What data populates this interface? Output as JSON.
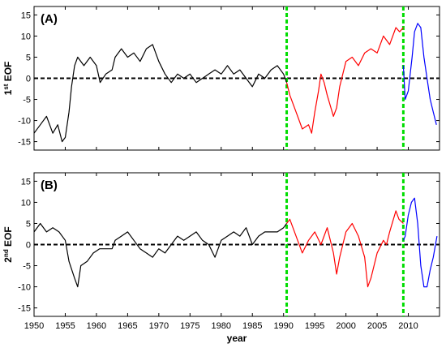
{
  "colors": {
    "pre": "#000000",
    "mid": "#ff0000",
    "post": "#0000ff",
    "split": "#00dd00",
    "zero": "#000000"
  },
  "chart_data": [
    {
      "type": "line",
      "panel_label": "(A)",
      "ylabel": {
        "prefix": "1",
        "sup": "st",
        "suffix": " EOF"
      },
      "xlabel": "",
      "xlim": [
        1950,
        2015
      ],
      "ylim": [
        -17,
        17
      ],
      "xticks": [],
      "yticks": [
        -15,
        -10,
        -5,
        0,
        5,
        10,
        15
      ],
      "grid": false,
      "split_years": [
        1990.5,
        2009.2
      ],
      "zero_line": 0,
      "series": [
        {
          "values": [
            [
              1950.0,
              -13
            ],
            [
              1951.0,
              -11
            ],
            [
              1952.0,
              -9
            ],
            [
              1953.0,
              -13
            ],
            [
              1953.8,
              -11
            ],
            [
              1954.5,
              -15
            ],
            [
              1955.0,
              -14
            ],
            [
              1955.6,
              -8
            ],
            [
              1956.0,
              -2
            ],
            [
              1956.5,
              3
            ],
            [
              1957.0,
              5
            ],
            [
              1958.0,
              3
            ],
            [
              1959.0,
              5
            ],
            [
              1960.0,
              3
            ],
            [
              1960.6,
              -1
            ],
            [
              1961.5,
              1
            ],
            [
              1962.5,
              2
            ],
            [
              1963.0,
              5
            ],
            [
              1964.0,
              7
            ],
            [
              1965.0,
              5
            ],
            [
              1966.0,
              6
            ],
            [
              1967.0,
              4
            ],
            [
              1968.0,
              7
            ],
            [
              1969.0,
              8
            ],
            [
              1970.0,
              4
            ],
            [
              1971.0,
              1
            ],
            [
              1972.0,
              -1
            ],
            [
              1973.0,
              1
            ],
            [
              1974.0,
              0
            ],
            [
              1975.0,
              1
            ],
            [
              1976.0,
              -1
            ],
            [
              1977.0,
              0
            ],
            [
              1978.0,
              1
            ],
            [
              1979.0,
              2
            ],
            [
              1980.0,
              1
            ],
            [
              1981.0,
              3
            ],
            [
              1982.0,
              1
            ],
            [
              1983.0,
              2
            ],
            [
              1984.0,
              0
            ],
            [
              1985.0,
              -2
            ],
            [
              1986.0,
              1
            ],
            [
              1987.0,
              0
            ],
            [
              1988.0,
              2
            ],
            [
              1989.0,
              3
            ],
            [
              1990.0,
              1
            ],
            [
              1990.5,
              -1
            ]
          ]
        },
        {
          "values": [
            [
              1990.5,
              -1
            ],
            [
              1991.0,
              -4
            ],
            [
              1992.0,
              -8
            ],
            [
              1993.0,
              -12
            ],
            [
              1994.0,
              -11
            ],
            [
              1994.5,
              -13
            ],
            [
              1995.0,
              -8
            ],
            [
              1995.6,
              -3
            ],
            [
              1996.0,
              1
            ],
            [
              1996.5,
              -1
            ],
            [
              1997.0,
              -4
            ],
            [
              1998.0,
              -9
            ],
            [
              1998.5,
              -7
            ],
            [
              1999.0,
              -2
            ],
            [
              2000.0,
              4
            ],
            [
              2001.0,
              5
            ],
            [
              2002.0,
              3
            ],
            [
              2003.0,
              6
            ],
            [
              2004.0,
              7
            ],
            [
              2005.0,
              6
            ],
            [
              2006.0,
              10
            ],
            [
              2007.0,
              8
            ],
            [
              2008.0,
              12
            ],
            [
              2008.6,
              11
            ],
            [
              2009.2,
              12
            ]
          ]
        },
        {
          "values": [
            [
              2009.2,
              3
            ],
            [
              2009.5,
              -5
            ],
            [
              2010.0,
              -3
            ],
            [
              2010.6,
              5
            ],
            [
              2011.0,
              11
            ],
            [
              2011.5,
              13
            ],
            [
              2012.0,
              12
            ],
            [
              2012.5,
              5
            ],
            [
              2013.0,
              0
            ],
            [
              2013.5,
              -5
            ],
            [
              2014.0,
              -8
            ],
            [
              2014.5,
              -11
            ]
          ]
        }
      ]
    },
    {
      "type": "line",
      "panel_label": "(B)",
      "ylabel": {
        "prefix": "2",
        "sup": "nd",
        "suffix": " EOF"
      },
      "xlabel": "year",
      "xlim": [
        1950,
        2015
      ],
      "ylim": [
        -17,
        17
      ],
      "xticks": [
        1950,
        1955,
        1960,
        1965,
        1970,
        1975,
        1980,
        1985,
        1990,
        1995,
        2000,
        2005,
        2010
      ],
      "yticks": [
        -15,
        -10,
        -5,
        0,
        5,
        10,
        15
      ],
      "grid": false,
      "split_years": [
        1990.5,
        2009.2
      ],
      "zero_line": 0,
      "series": [
        {
          "values": [
            [
              1950.0,
              3
            ],
            [
              1951.0,
              5
            ],
            [
              1952.0,
              3
            ],
            [
              1953.0,
              4
            ],
            [
              1954.0,
              3
            ],
            [
              1955.0,
              1
            ],
            [
              1955.6,
              -4
            ],
            [
              1956.5,
              -8
            ],
            [
              1957.0,
              -10
            ],
            [
              1957.5,
              -5
            ],
            [
              1958.5,
              -4
            ],
            [
              1959.5,
              -2
            ],
            [
              1960.5,
              -1
            ],
            [
              1961.5,
              -1
            ],
            [
              1962.5,
              -1
            ],
            [
              1963.0,
              1
            ],
            [
              1964.0,
              2
            ],
            [
              1965.0,
              3
            ],
            [
              1966.0,
              1
            ],
            [
              1967.0,
              -1
            ],
            [
              1968.0,
              -2
            ],
            [
              1969.0,
              -3
            ],
            [
              1970.0,
              -1
            ],
            [
              1971.0,
              -2
            ],
            [
              1972.0,
              0
            ],
            [
              1973.0,
              2
            ],
            [
              1974.0,
              1
            ],
            [
              1975.0,
              2
            ],
            [
              1976.0,
              3
            ],
            [
              1977.0,
              1
            ],
            [
              1978.0,
              0
            ],
            [
              1979.0,
              -3
            ],
            [
              1980.0,
              1
            ],
            [
              1981.0,
              2
            ],
            [
              1982.0,
              3
            ],
            [
              1983.0,
              2
            ],
            [
              1984.0,
              4
            ],
            [
              1985.0,
              0
            ],
            [
              1986.0,
              2
            ],
            [
              1987.0,
              3
            ],
            [
              1988.0,
              3
            ],
            [
              1989.0,
              3
            ],
            [
              1990.0,
              4
            ],
            [
              1990.5,
              5
            ]
          ]
        },
        {
          "values": [
            [
              1990.5,
              5
            ],
            [
              1991.0,
              6
            ],
            [
              1992.0,
              2
            ],
            [
              1993.0,
              -2
            ],
            [
              1994.0,
              1
            ],
            [
              1995.0,
              3
            ],
            [
              1996.0,
              0
            ],
            [
              1997.0,
              4
            ],
            [
              1998.0,
              -2
            ],
            [
              1998.5,
              -7
            ],
            [
              1999.0,
              -3
            ],
            [
              2000.0,
              3
            ],
            [
              2001.0,
              5
            ],
            [
              2002.0,
              2
            ],
            [
              2003.0,
              -3
            ],
            [
              2003.5,
              -10
            ],
            [
              2004.0,
              -8
            ],
            [
              2005.0,
              -2
            ],
            [
              2006.0,
              1
            ],
            [
              2006.5,
              0
            ],
            [
              2007.0,
              3
            ],
            [
              2008.0,
              8
            ],
            [
              2008.5,
              6
            ],
            [
              2009.2,
              5
            ]
          ]
        },
        {
          "values": [
            [
              2009.2,
              1
            ],
            [
              2009.5,
              2
            ],
            [
              2010.0,
              7
            ],
            [
              2010.5,
              10
            ],
            [
              2011.0,
              11
            ],
            [
              2011.5,
              5
            ],
            [
              2012.0,
              -5
            ],
            [
              2012.5,
              -10
            ],
            [
              2013.0,
              -10
            ],
            [
              2013.5,
              -6
            ],
            [
              2014.0,
              -3
            ],
            [
              2014.6,
              2
            ]
          ]
        }
      ]
    }
  ]
}
